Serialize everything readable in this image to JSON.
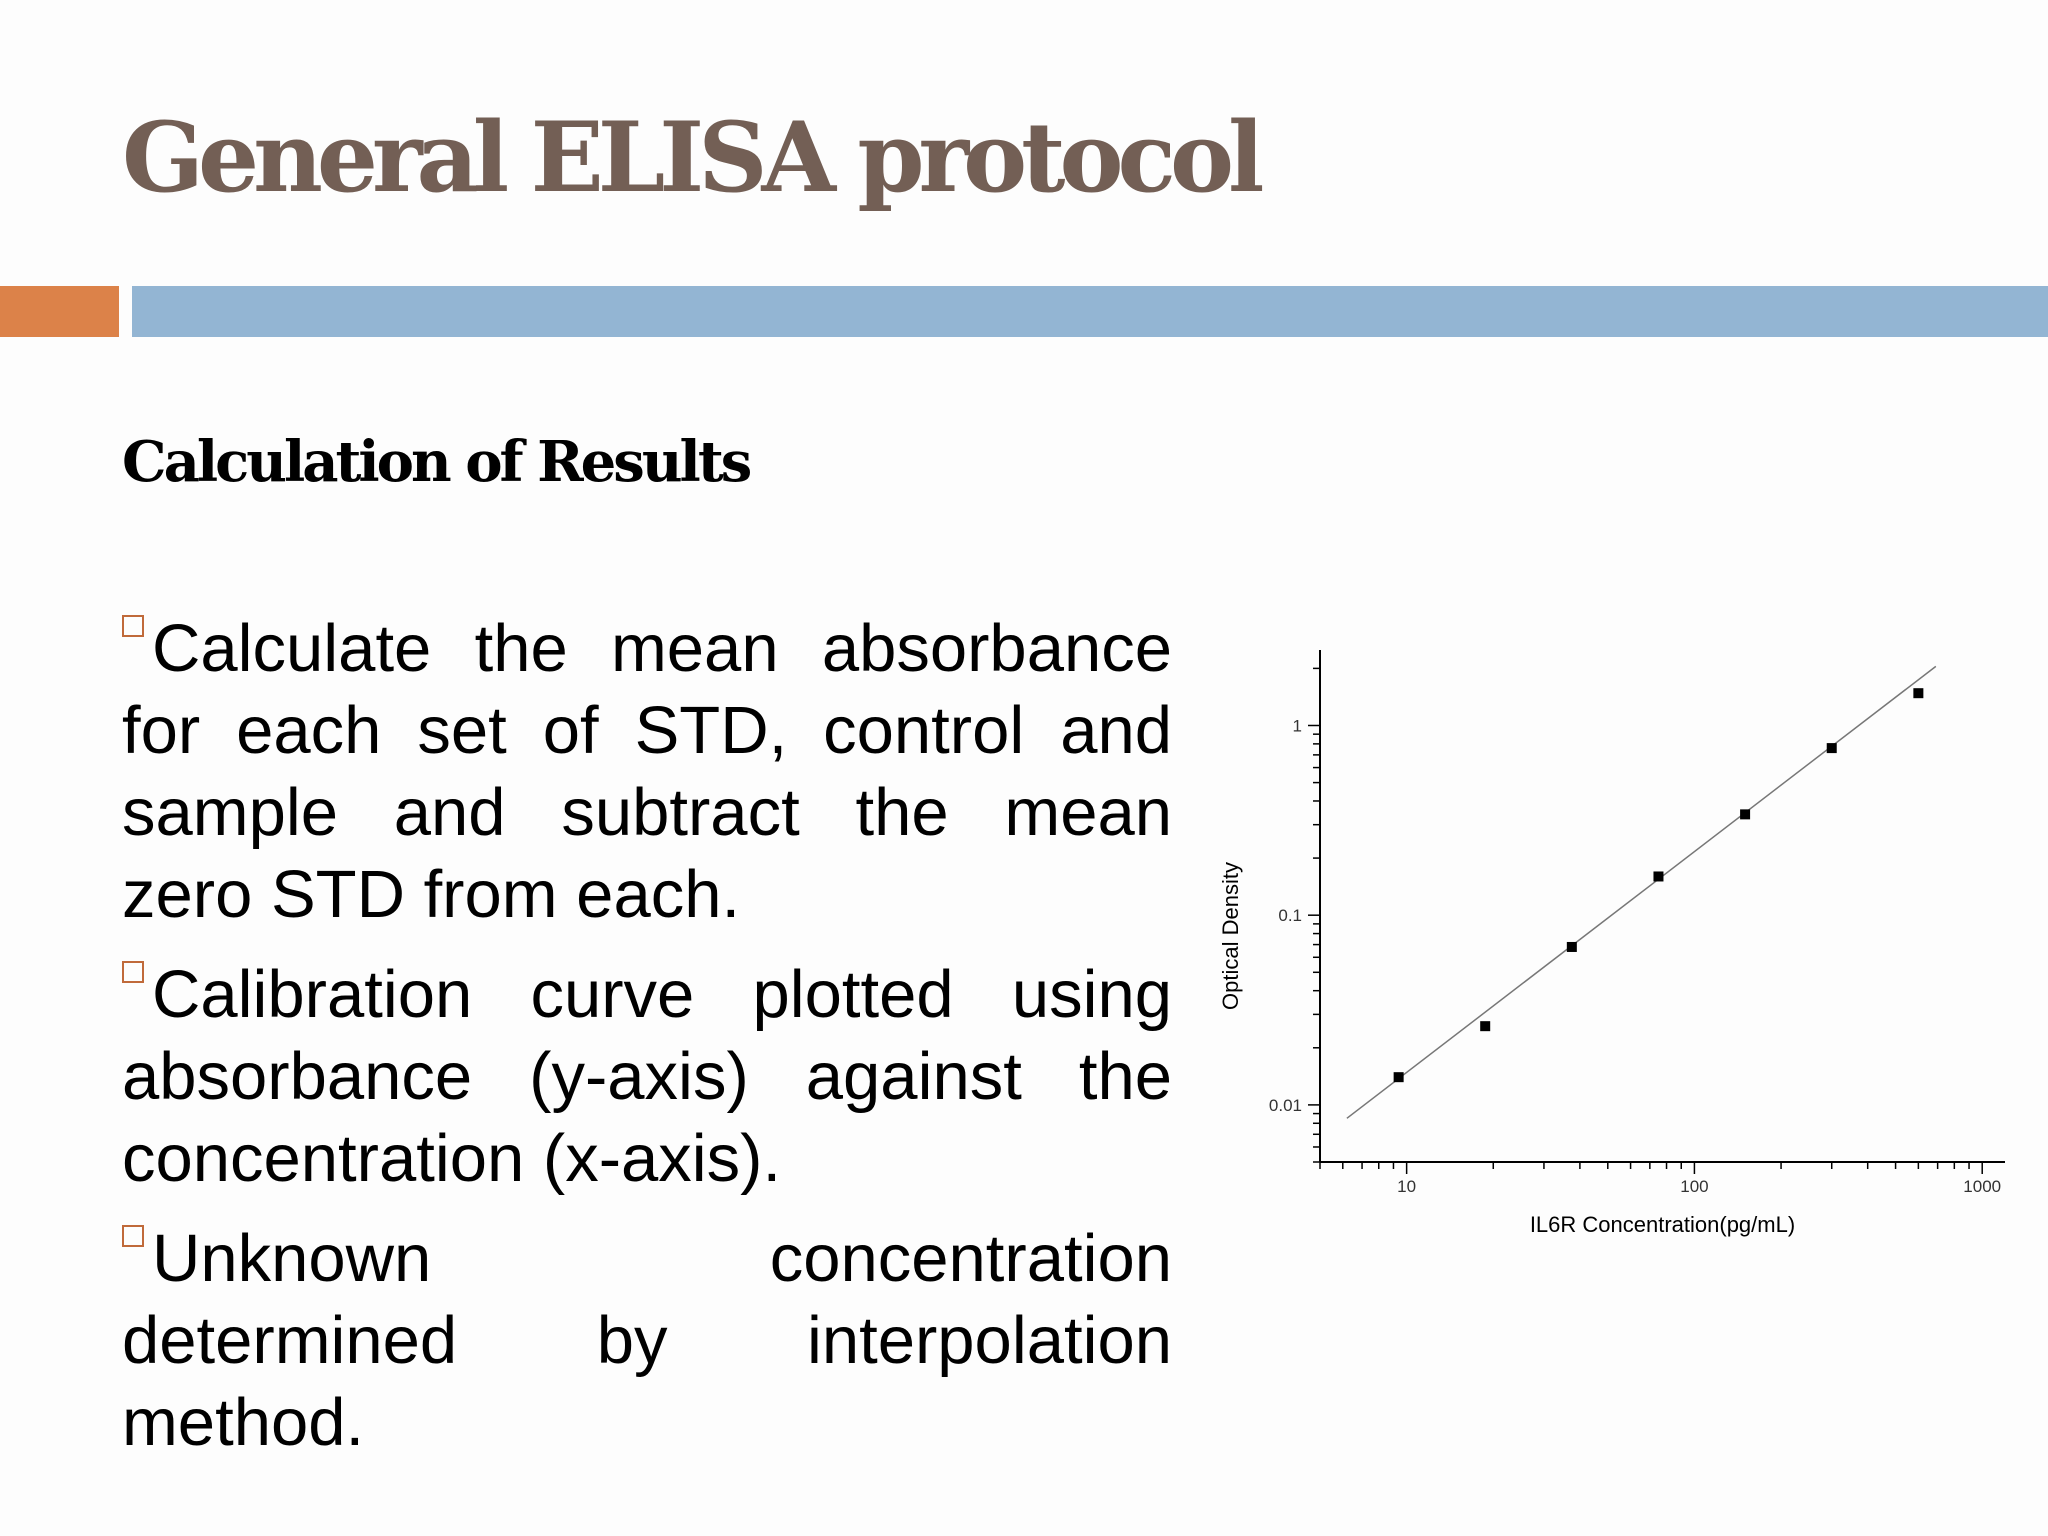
{
  "slide": {
    "title": "General ELISA protocol",
    "heading": "Calculation of Results",
    "colors": {
      "title": "#735f55",
      "accent_orange": "#dc8249",
      "accent_blue": "#93b5d3"
    },
    "bullets": [
      {
        "text": "Calculate the mean absorbance for each set of STD, control and sample and subtract the mean zero STD from each.",
        "icon": "hollow-square-bullet"
      },
      {
        "text": "Calibration curve plotted using absorbance (y-axis) against the concentration (x-axis).",
        "icon": "hollow-square-bullet"
      },
      {
        "text": "Unknown concentration determined by interpolation method.",
        "icon": "hollow-square-bullet"
      }
    ]
  },
  "chart_data": {
    "type": "scatter",
    "title": "",
    "xlabel": "IL6R Concentration(pg/mL)",
    "ylabel": "Optical Density",
    "xscale": "log",
    "yscale": "log",
    "xlim": [
      5,
      1200
    ],
    "ylim": [
      0.005,
      2.5
    ],
    "xticks": [
      {
        "value": 10,
        "label": "10"
      },
      {
        "value": 100,
        "label": "100"
      },
      {
        "value": 1000,
        "label": "1000"
      }
    ],
    "yticks": [
      {
        "value": 0.01,
        "label": "0.01"
      },
      {
        "value": 0.1,
        "label": "0.1"
      },
      {
        "value": 1,
        "label": "1"
      }
    ],
    "grid": false,
    "series": [
      {
        "x": [
          9.38,
          18.75,
          37.5,
          75,
          150,
          300,
          600
        ],
        "y": [
          0.014,
          0.026,
          0.068,
          0.16,
          0.34,
          0.76,
          1.48
        ]
      }
    ],
    "fit_line": {
      "x": [
        6.2,
        690
      ],
      "y": [
        0.0085,
        2.05
      ]
    }
  }
}
